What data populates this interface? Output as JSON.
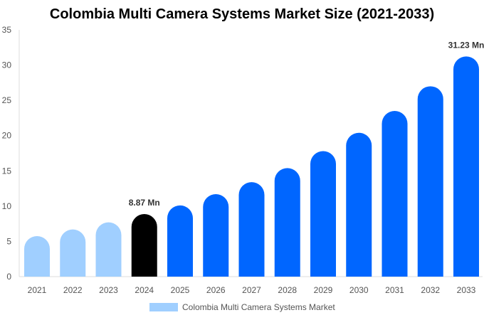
{
  "chart_data": {
    "type": "bar",
    "title": "Colombia Multi Camera Systems Market Size (2021-2033)",
    "categories": [
      "2021",
      "2022",
      "2023",
      "2024",
      "2025",
      "2026",
      "2027",
      "2028",
      "2029",
      "2030",
      "2031",
      "2032",
      "2033"
    ],
    "series": [
      {
        "name": "Colombia Multi Camera Systems Market",
        "values": [
          5.75,
          6.7,
          7.7,
          8.87,
          10.1,
          11.7,
          13.4,
          15.4,
          17.8,
          20.4,
          23.5,
          27.0,
          31.23
        ]
      }
    ],
    "data_labels": {
      "3": "8.87 Mn",
      "12": "31.23 Mn"
    },
    "ylim": [
      0,
      35
    ],
    "yticks": [
      0,
      5,
      10,
      15,
      20,
      25,
      30,
      35
    ],
    "xlabel": "",
    "ylabel": "",
    "grid": false,
    "legend": "bottom",
    "colors": {
      "history": "#a0cfff",
      "current": "#000000",
      "forecast": "#0066ff"
    }
  }
}
